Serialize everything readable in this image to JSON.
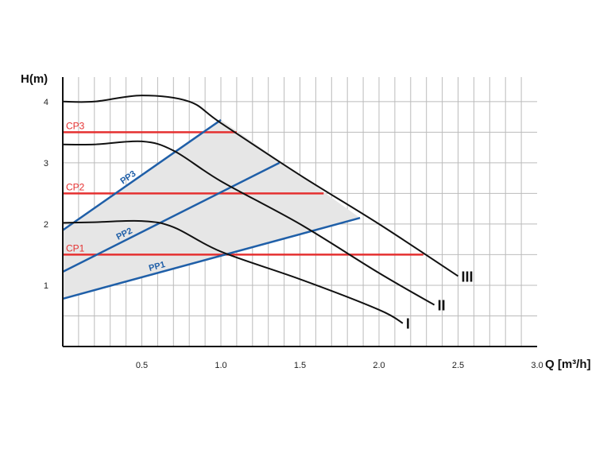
{
  "chart_data": {
    "type": "line",
    "xlabel": "Q [m³/h]",
    "ylabel": "H(m)",
    "xlim": [
      0,
      3.0
    ],
    "ylim": [
      0,
      4.4
    ],
    "x_ticks": [
      0.5,
      1.0,
      1.5,
      2.0,
      2.5,
      3.0
    ],
    "x_tick_labels": [
      "0.5",
      "1.0",
      "1.5",
      "2.0",
      "2.5",
      "3.0"
    ],
    "y_ticks": [
      1,
      2,
      3,
      4
    ],
    "y_tick_labels": [
      "1",
      "2",
      "3",
      "4"
    ],
    "grid": true,
    "colors": {
      "constant_speed": "#111111",
      "constant_pressure": "#e53030",
      "proportional_pressure": "#1f5fa8",
      "area_fill": "#e6e6e6",
      "grid": "#bbbbbb"
    },
    "speed_curves": [
      {
        "name": "I",
        "points": [
          [
            0,
            2.02
          ],
          [
            0.2,
            2.03
          ],
          [
            0.5,
            2.05
          ],
          [
            0.7,
            1.95
          ],
          [
            1.0,
            1.55
          ],
          [
            1.5,
            1.1
          ],
          [
            2.0,
            0.6
          ],
          [
            2.15,
            0.38
          ]
        ]
      },
      {
        "name": "II",
        "points": [
          [
            0,
            3.3
          ],
          [
            0.2,
            3.3
          ],
          [
            0.5,
            3.35
          ],
          [
            0.7,
            3.2
          ],
          [
            1.0,
            2.7
          ],
          [
            1.5,
            2.0
          ],
          [
            2.0,
            1.2
          ],
          [
            2.35,
            0.68
          ]
        ]
      },
      {
        "name": "III",
        "points": [
          [
            0,
            4.0
          ],
          [
            0.2,
            4.0
          ],
          [
            0.5,
            4.1
          ],
          [
            0.8,
            4.0
          ],
          [
            1.0,
            3.65
          ],
          [
            1.5,
            2.8
          ],
          [
            2.0,
            2.0
          ],
          [
            2.5,
            1.15
          ]
        ]
      }
    ],
    "constant_pressure_lines": [
      {
        "name": "CP3",
        "y": 3.5,
        "x_end": 1.1
      },
      {
        "name": "CP2",
        "y": 2.5,
        "x_end": 1.65
      },
      {
        "name": "CP1",
        "y": 1.5,
        "x_end": 2.28
      }
    ],
    "proportional_pressure_lines": [
      {
        "name": "PP3",
        "points": [
          [
            0,
            1.9
          ],
          [
            1.0,
            3.7
          ]
        ]
      },
      {
        "name": "PP2",
        "points": [
          [
            0,
            1.22
          ],
          [
            1.37,
            3.0
          ]
        ]
      },
      {
        "name": "PP1",
        "points": [
          [
            0,
            0.78
          ],
          [
            1.88,
            2.1
          ]
        ]
      }
    ],
    "shaded_region": [
      [
        0,
        1.9
      ],
      [
        1.0,
        3.7
      ],
      [
        1.5,
        2.8
      ],
      [
        1.88,
        2.1
      ],
      [
        0,
        0.78
      ]
    ]
  }
}
